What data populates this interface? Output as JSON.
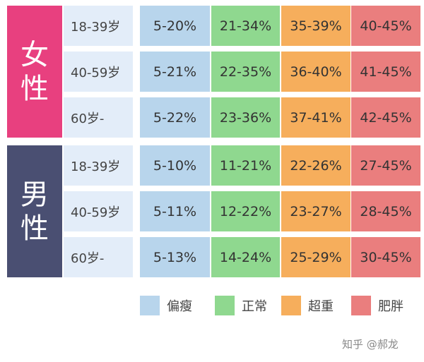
{
  "table": {
    "groups": [
      {
        "label": "女性",
        "rows": [
          {
            "age": "18-39岁",
            "cells": [
              "5-20%",
              "21-34%",
              "35-39%",
              "40-45%"
            ]
          },
          {
            "age": "40-59岁",
            "cells": [
              "5-21%",
              "22-35%",
              "36-40%",
              "41-45%"
            ]
          },
          {
            "age": "60岁-",
            "cells": [
              "5-22%",
              "23-36%",
              "37-41%",
              "42-45%"
            ]
          }
        ]
      },
      {
        "label": "男性",
        "rows": [
          {
            "age": "18-39岁",
            "cells": [
              "5-10%",
              "11-21%",
              "22-26%",
              "27-45%"
            ]
          },
          {
            "age": "40-59岁",
            "cells": [
              "5-11%",
              "12-22%",
              "23-27%",
              "28-45%"
            ]
          },
          {
            "age": "60岁-",
            "cells": [
              "5-13%",
              "14-24%",
              "25-29%",
              "30-45%"
            ]
          }
        ]
      }
    ]
  },
  "legend": [
    "偏瘦",
    "正常",
    "超重",
    "肥胖"
  ],
  "watermark": "知乎 @郝龙"
}
